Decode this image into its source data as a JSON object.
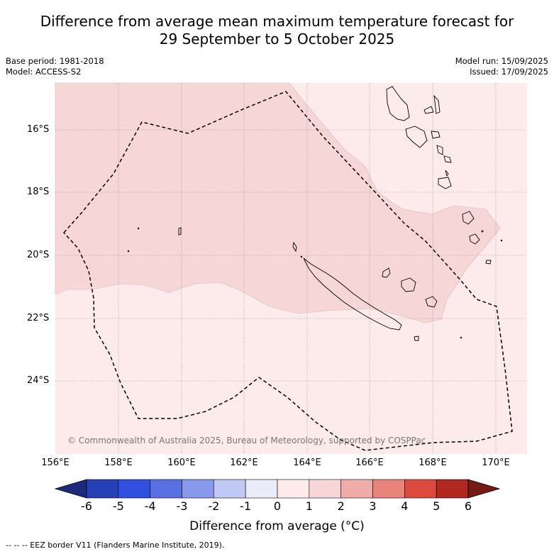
{
  "title_line1": "Difference from average mean maximum temperature forecast for",
  "title_line2": "29 September to 5 October 2025",
  "meta_left": {
    "base_period": "Base period: 1981-2018",
    "model": "Model: ACCESS-S2"
  },
  "meta_right": {
    "model_run": "Model run: 15/09/2025",
    "issued": "Issued: 17/09/2025"
  },
  "latitudes": [
    "16°S",
    "18°S",
    "20°S",
    "22°S",
    "24°S"
  ],
  "longitudes": [
    "156°E",
    "158°E",
    "160°E",
    "162°E",
    "164°E",
    "166°E",
    "168°E",
    "170°E"
  ],
  "copyright": "© Commonwealth of Australia 2025, Bureau of Meteorology, supported by COSPPac",
  "colorbar": {
    "ticks": [
      "-6",
      "-5",
      "-4",
      "-3",
      "-2",
      "-1",
      "0",
      "1",
      "2",
      "3",
      "4",
      "5",
      "6"
    ],
    "colors": [
      "#1b2a7a",
      "#2540b4",
      "#3050e0",
      "#5870e4",
      "#8898ea",
      "#c0c8f4",
      "#eaecfa",
      "#fdebea",
      "#f6d6d6",
      "#efaca8",
      "#e8847c",
      "#dc4a3e",
      "#b02820",
      "#741c14"
    ],
    "label": "Difference from average (°C)"
  },
  "footer": "-- -- -- EEZ border V11 (Flanders Marine Institute, 2019).",
  "map_colors": {
    "light_zone": "#fcebea",
    "mid_zone": "#f6d6d6"
  }
}
